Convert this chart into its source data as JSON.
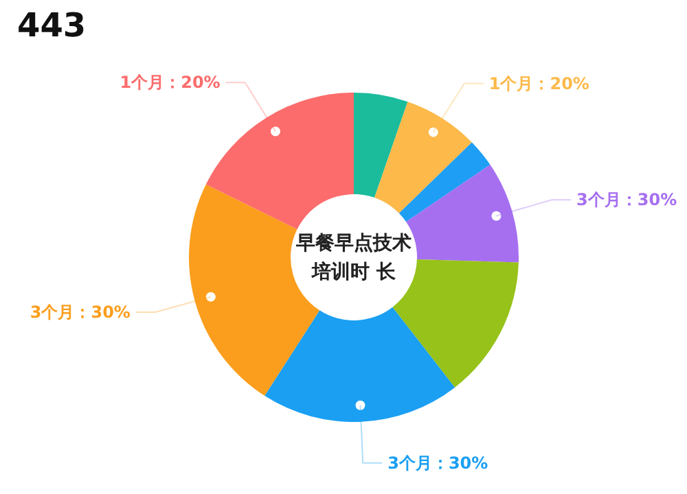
{
  "chart_data": {
    "type": "donut",
    "title": "早餐早点技术",
    "subtitle": "培训时 长",
    "annotations": [
      "443"
    ],
    "categories": [
      null,
      "1个月：20%",
      null,
      "3个月：30%",
      null,
      "3个月：30%",
      "3个月：30%",
      "1个月：20%"
    ],
    "values": [
      5.3,
      7.4,
      2.8,
      10,
      14,
      19.6,
      23.2,
      17.7
    ],
    "colors": [
      "#1abc9c",
      "#fdb94a",
      "#1e9ef5",
      "#a66ff0",
      "#97c21a",
      "#1a9ff2",
      "#fb9e1d",
      "#fc6c6c"
    ]
  }
}
